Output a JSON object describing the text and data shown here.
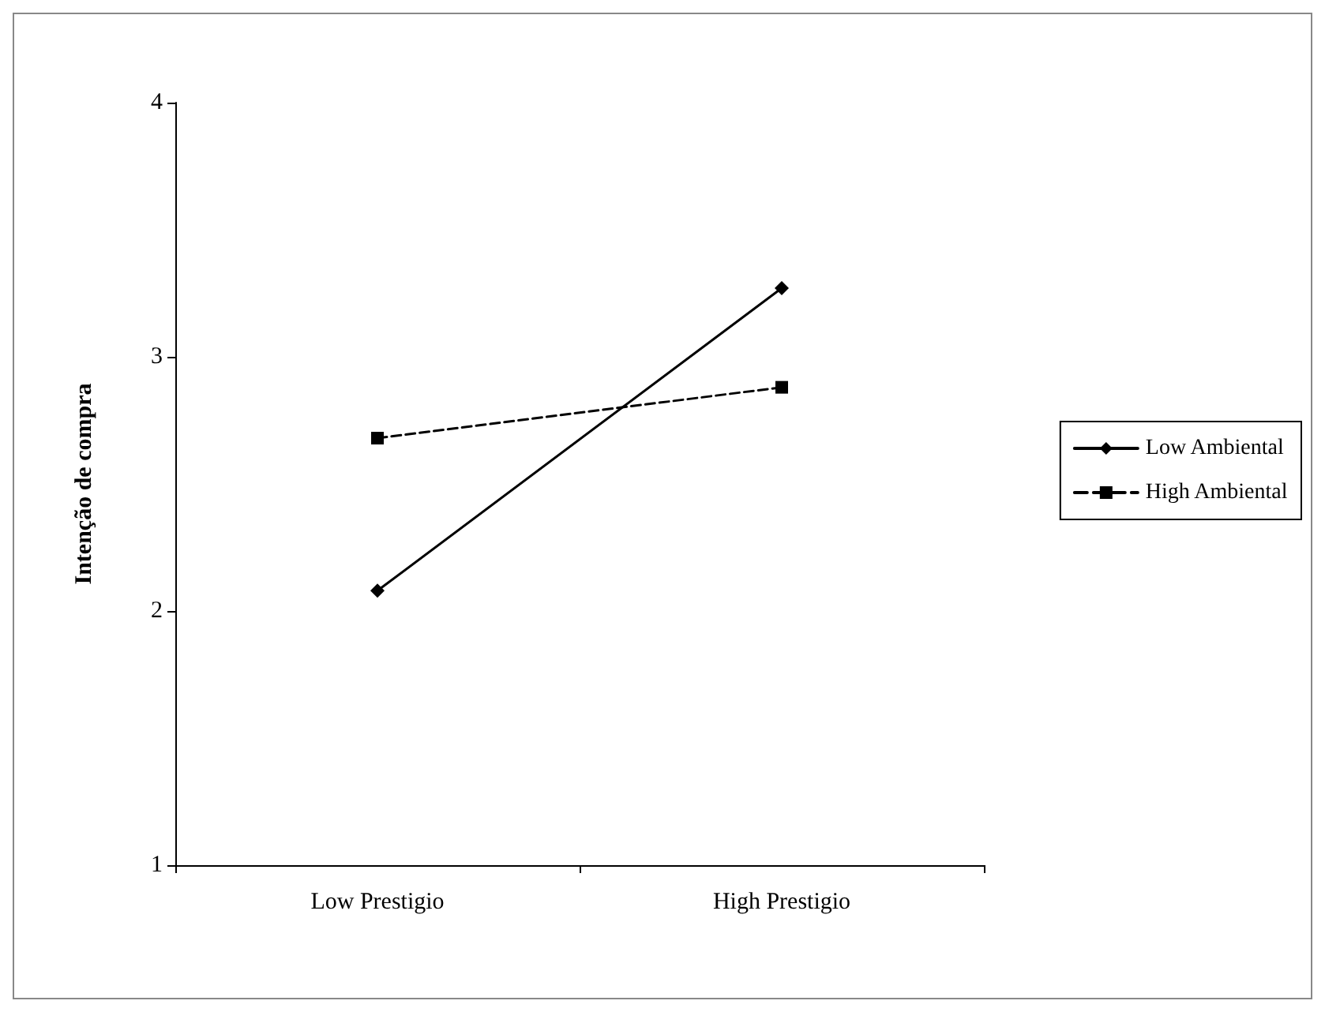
{
  "chart_data": {
    "type": "line",
    "ylabel": "Intenção de compra",
    "categories": [
      "Low Prestigio",
      "High Prestigio"
    ],
    "series": [
      {
        "name": "Low Ambiental",
        "color": "#000000",
        "values": [
          2.08,
          3.27
        ],
        "marker": "diamond",
        "line_style": "solid"
      },
      {
        "name": "High Ambiental",
        "color": "#000000",
        "values": [
          2.68,
          2.88
        ],
        "marker": "square",
        "line_style": "dashed"
      }
    ],
    "ylim": [
      1,
      4
    ],
    "yticks": [
      1,
      2,
      3,
      4
    ],
    "grid": false,
    "legend": "right"
  }
}
